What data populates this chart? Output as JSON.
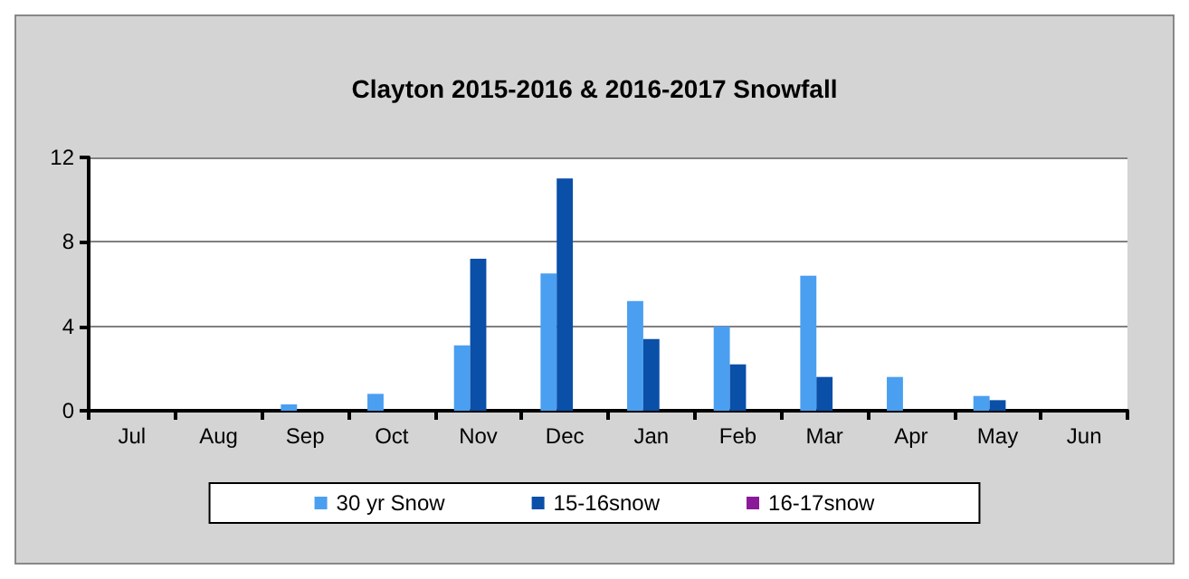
{
  "chart_data": {
    "type": "bar",
    "title": "Clayton 2015-2016 & 2016-2017 Snowfall",
    "categories": [
      "Jul",
      "Aug",
      "Sep",
      "Oct",
      "Nov",
      "Dec",
      "Jan",
      "Feb",
      "Mar",
      "Apr",
      "May",
      "Jun"
    ],
    "series": [
      {
        "name": "30 yr Snow",
        "color": "#4a9ff0",
        "values": [
          null,
          null,
          0.3,
          0.8,
          3.1,
          6.5,
          5.2,
          4.0,
          6.4,
          1.6,
          0.7,
          null
        ]
      },
      {
        "name": "15-16snow",
        "color": "#0a4fa8",
        "values": [
          null,
          null,
          null,
          null,
          7.2,
          11,
          3.4,
          2.2,
          1.6,
          null,
          0.5,
          null
        ]
      },
      {
        "name": "16-17snow",
        "color": "#8a1a9a",
        "values": [
          null,
          null,
          null,
          null,
          null,
          null,
          null,
          null,
          null,
          null,
          null,
          null
        ]
      }
    ],
    "ylim": [
      0,
      12
    ],
    "yticks": [
      0,
      4,
      8,
      12
    ],
    "grid": "y",
    "legend": "bottom"
  }
}
